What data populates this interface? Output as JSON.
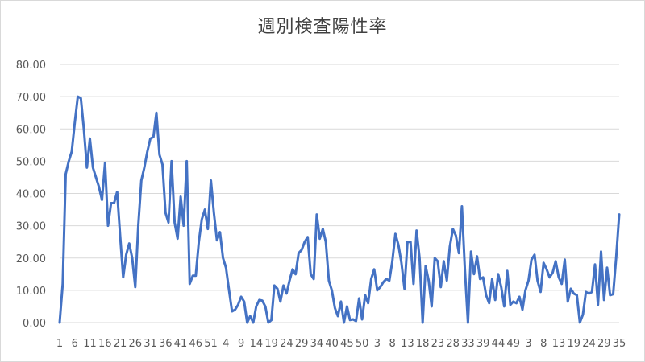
{
  "chart_data": {
    "type": "line",
    "title": "週別検査陽性率",
    "xlabel": "",
    "ylabel": "",
    "ylim": [
      0,
      80
    ],
    "y_ticks": [
      "0.00",
      "10.00",
      "20.00",
      "30.00",
      "40.00",
      "50.00",
      "60.00",
      "70.00",
      "80.00"
    ],
    "x_tick_labels": [
      "1",
      "6",
      "11",
      "16",
      "21",
      "26",
      "31",
      "36",
      "41",
      "46",
      "51",
      "4",
      "9",
      "14",
      "19",
      "24",
      "29",
      "34",
      "40",
      "45",
      "50",
      "3",
      "8",
      "13",
      "18",
      "23",
      "28",
      "33",
      "39",
      "44",
      "49",
      "3",
      "8",
      "13",
      "19",
      "24",
      "29",
      "35"
    ],
    "x_label_every": 5,
    "grid": true,
    "legend": "none",
    "line_color": "#4472c4",
    "series": [
      {
        "values": [
          0,
          12,
          46,
          50,
          53,
          62,
          70,
          69.5,
          60,
          48,
          57,
          48,
          45,
          42,
          38,
          49.5,
          30,
          37,
          37,
          40.5,
          27,
          14,
          21,
          24.5,
          20,
          11,
          30,
          44,
          48,
          53,
          57,
          57.5,
          65,
          52,
          49,
          34,
          31,
          50,
          31,
          26,
          39,
          30,
          50,
          12,
          14.5,
          14.5,
          25,
          32,
          35,
          29,
          44,
          34,
          25.5,
          28,
          20,
          17,
          10,
          3.5,
          4,
          5.5,
          8,
          6.5,
          0,
          2,
          0,
          5,
          7,
          6.8,
          5,
          0,
          0.8,
          11.5,
          10.5,
          6.5,
          11.5,
          9,
          13,
          16.5,
          15,
          21.5,
          22.5,
          25,
          26.5,
          15,
          13.5,
          33.5,
          26,
          29,
          25,
          13,
          10,
          4.5,
          2,
          6.5,
          0,
          5,
          0.8,
          1,
          0.5,
          7.5,
          1,
          8.5,
          6,
          13.5,
          16.5,
          10,
          11,
          12.5,
          13.5,
          13,
          19,
          27.5,
          24,
          18.5,
          10.5,
          25,
          25,
          12,
          28.5,
          20,
          0,
          17.5,
          13,
          5,
          20,
          19,
          11,
          19,
          13,
          23.5,
          29,
          27,
          21.5,
          36,
          16,
          0,
          22,
          15,
          20.5,
          13.5,
          14,
          8.5,
          6,
          13.5,
          7,
          15,
          11,
          5,
          16,
          5.5,
          6.5,
          6,
          8,
          4,
          10,
          13,
          19.5,
          21,
          13,
          9.5,
          18.5,
          16.5,
          14,
          15.5,
          19,
          14,
          12,
          19.5,
          6.5,
          10.5,
          9,
          8.5,
          0,
          2.5,
          9.5,
          9,
          9.5,
          18,
          5.5,
          22,
          7,
          17,
          8.5,
          8.8,
          20,
          33.5
        ]
      }
    ]
  }
}
